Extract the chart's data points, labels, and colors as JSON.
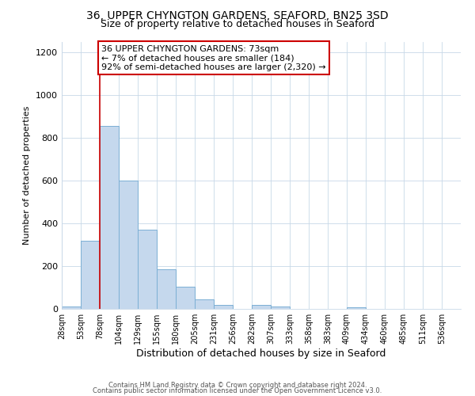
{
  "title": "36, UPPER CHYNGTON GARDENS, SEAFORD, BN25 3SD",
  "subtitle": "Size of property relative to detached houses in Seaford",
  "xlabel": "Distribution of detached houses by size in Seaford",
  "ylabel": "Number of detached properties",
  "bin_labels": [
    "28sqm",
    "53sqm",
    "78sqm",
    "104sqm",
    "129sqm",
    "155sqm",
    "180sqm",
    "205sqm",
    "231sqm",
    "256sqm",
    "282sqm",
    "307sqm",
    "333sqm",
    "358sqm",
    "383sqm",
    "409sqm",
    "434sqm",
    "460sqm",
    "485sqm",
    "511sqm",
    "536sqm"
  ],
  "bar_values": [
    10,
    320,
    855,
    600,
    370,
    185,
    103,
    46,
    20,
    0,
    18,
    10,
    0,
    0,
    0,
    8,
    0,
    0,
    0,
    0,
    0
  ],
  "bar_color": "#c5d8ed",
  "bar_edge_color": "#7bafd4",
  "vline_x_index": 2,
  "vline_color": "#cc0000",
  "annotation_text": "36 UPPER CHYNGTON GARDENS: 73sqm\n← 7% of detached houses are smaller (184)\n92% of semi-detached houses are larger (2,320) →",
  "annotation_box_color": "#ffffff",
  "annotation_box_edge_color": "#cc0000",
  "ylim": [
    0,
    1250
  ],
  "yticks": [
    0,
    200,
    400,
    600,
    800,
    1000,
    1200
  ],
  "footer_line1": "Contains HM Land Registry data © Crown copyright and database right 2024.",
  "footer_line2": "Contains public sector information licensed under the Open Government Licence v3.0.",
  "background_color": "#ffffff",
  "grid_color": "#c8d8e8",
  "title_fontsize": 10,
  "subtitle_fontsize": 9
}
